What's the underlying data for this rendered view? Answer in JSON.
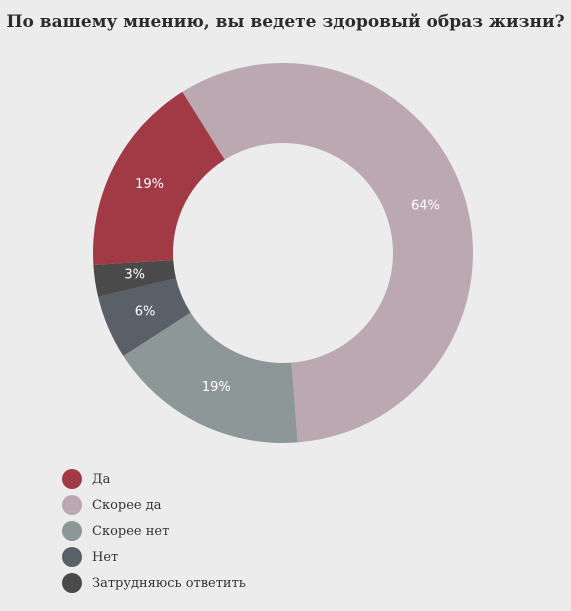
{
  "chart_data": {
    "type": "pie",
    "title": "По вашему мнению, вы ведете здоровый образ жизни?",
    "categories": [
      "Да",
      "Скорее да",
      "Скорее нет",
      "Нет",
      "Затрудняюсь ответить"
    ],
    "values": [
      19,
      64,
      19,
      6,
      3
    ],
    "value_labels": [
      "19%",
      "64%",
      "19%",
      "6%",
      "3%"
    ],
    "colors": [
      "#a13a44",
      "#bba8b0",
      "#8e9798",
      "#596068",
      "#4a4a4a"
    ],
    "donut": true,
    "legend_position": "bottom-left"
  }
}
